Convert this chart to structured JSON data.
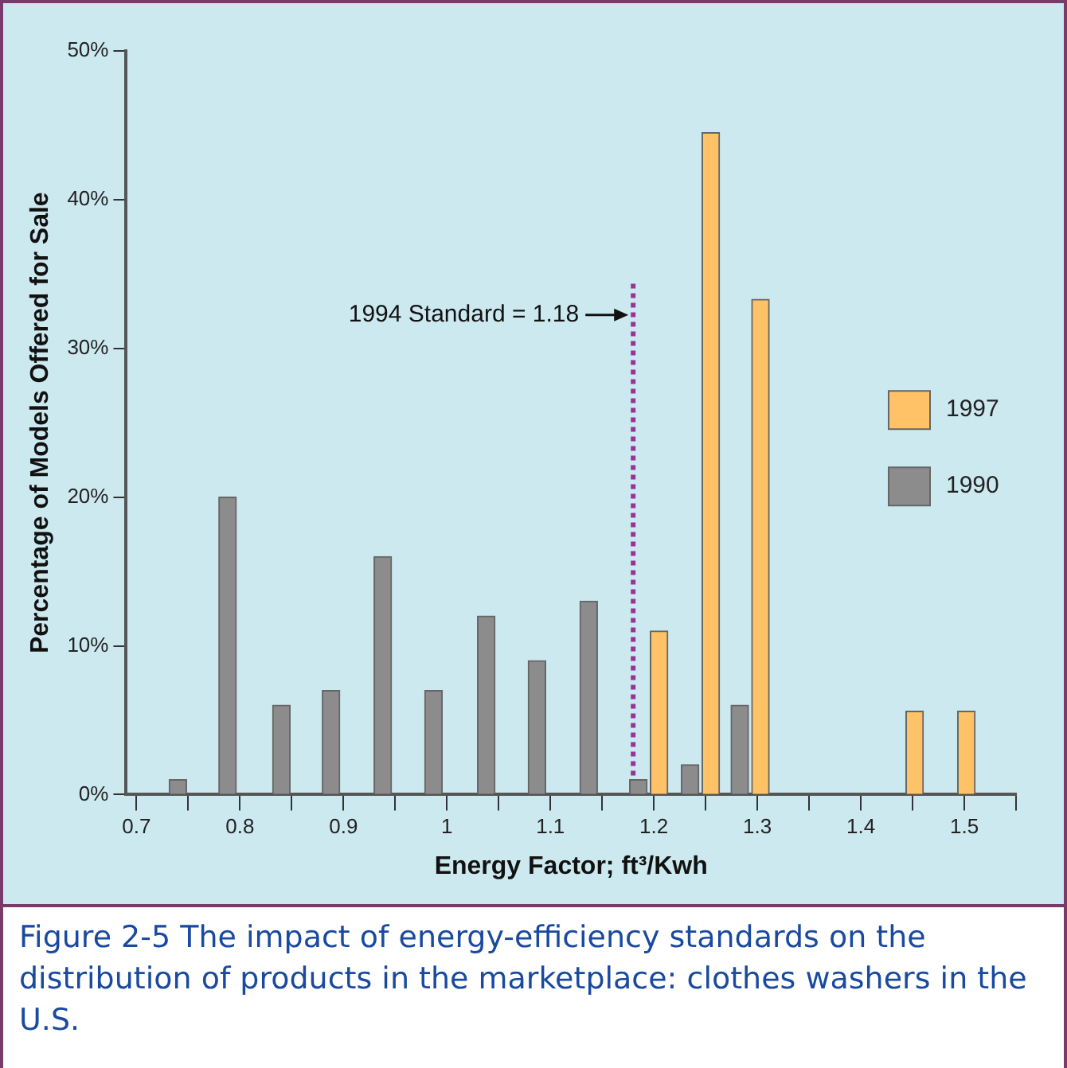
{
  "chart_data": {
    "type": "bar",
    "xlabel": "Energy Factor; ft³/Kwh",
    "ylabel": "Percentage of Models Offered for Sale",
    "series": [
      {
        "name": "1997",
        "color": "#ffc266",
        "x": [
          1.205,
          1.255,
          1.303,
          1.452,
          1.502
        ],
        "values": [
          11,
          44.5,
          33.3,
          5.6,
          5.6
        ]
      },
      {
        "name": "1990",
        "color": "#8c8c8c",
        "x": [
          0.74,
          0.788,
          0.84,
          0.888,
          0.938,
          0.987,
          1.038,
          1.087,
          1.137,
          1.185,
          1.235,
          1.283
        ],
        "values": [
          1,
          20,
          6,
          7,
          16,
          7,
          12,
          9,
          13,
          1,
          2,
          6
        ]
      }
    ],
    "xlim": [
      0.69,
      1.55
    ],
    "xticks": [
      0.7,
      {
        "value": 0.75,
        "label": null
      },
      0.8,
      {
        "value": 0.85,
        "label": null
      },
      0.9,
      {
        "value": 0.95,
        "label": null
      },
      1,
      {
        "value": 1.05,
        "label": null
      },
      1.1,
      {
        "value": 1.15,
        "label": null
      },
      1.2,
      {
        "value": 1.25,
        "label": null
      },
      1.3,
      {
        "value": 1.35,
        "label": null
      },
      1.4,
      {
        "value": 1.45,
        "label": null
      },
      1.5,
      {
        "value": 1.55,
        "label": null
      }
    ],
    "ylim": [
      0,
      50
    ],
    "yticks": [
      {
        "value": 0,
        "label": "0%"
      },
      {
        "value": 10,
        "label": "10%"
      },
      {
        "value": 20,
        "label": "20%"
      },
      {
        "value": 30,
        "label": "30%"
      },
      {
        "value": 40,
        "label": "40%"
      },
      {
        "value": 50,
        "label": "50%"
      }
    ],
    "ref_lines": [
      {
        "axis": "x",
        "value": 1.18,
        "label": "1994 Standard = 1.18",
        "color": "#993399",
        "line_style": "dotted"
      }
    ],
    "annotations": [
      "Figure 2-5  The impact of energy-efficiency standards on the distribution of products in the marketplace: clothes washers in the U.S."
    ],
    "legend": "right",
    "grid": false
  }
}
